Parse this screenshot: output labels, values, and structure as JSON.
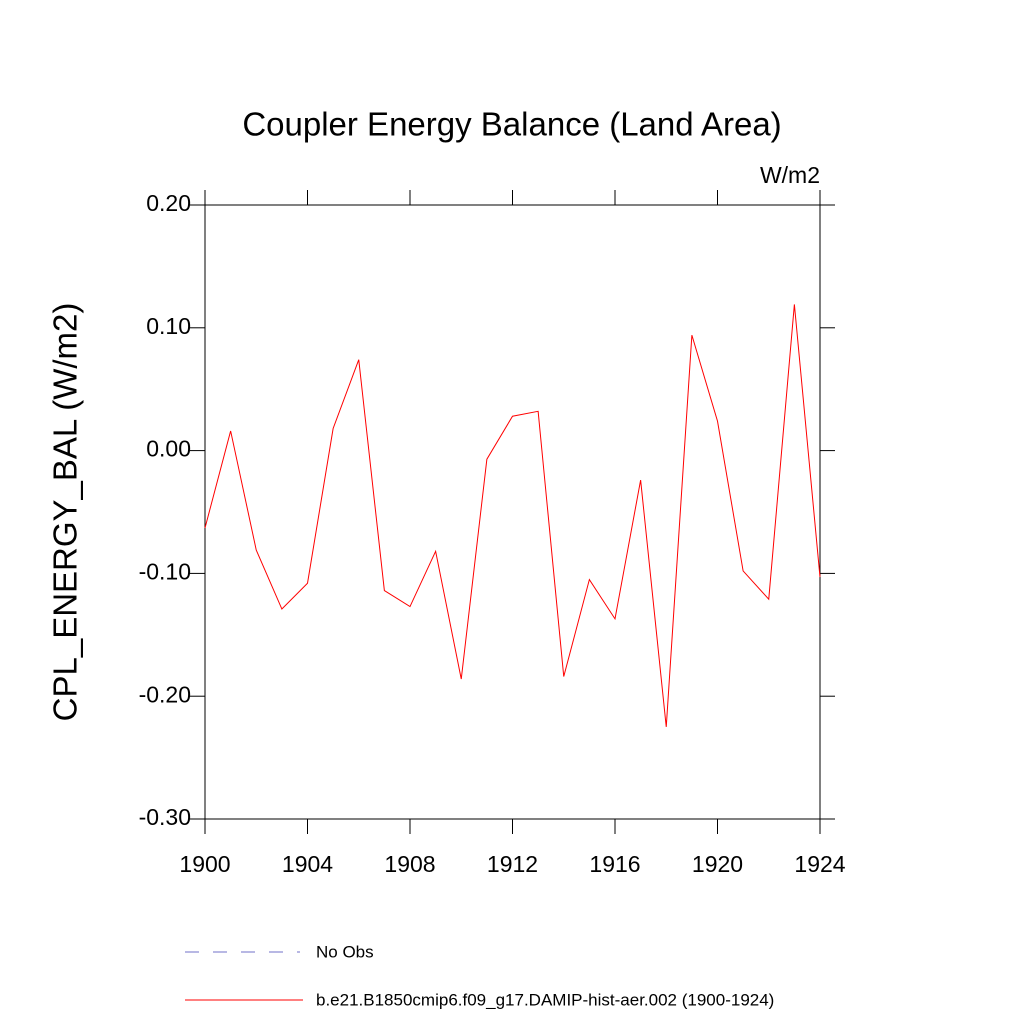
{
  "chart_data": {
    "type": "line",
    "title": "Coupler Energy Balance (Land Area)",
    "units": "W/m2",
    "y_label": "CPL_ENERGY_BAL  (W/m2)",
    "x": [
      1900,
      1901,
      1902,
      1903,
      1904,
      1905,
      1906,
      1907,
      1908,
      1909,
      1910,
      1911,
      1912,
      1913,
      1914,
      1915,
      1916,
      1917,
      1918,
      1919,
      1920,
      1921,
      1922,
      1923,
      1924
    ],
    "series": [
      {
        "name": "b.e21.B1850cmip6.f09_g17.DAMIP-hist-aer.002 (1900-1924)",
        "color": "#ff0000",
        "values": [
          -0.063,
          0.016,
          -0.081,
          -0.129,
          -0.108,
          0.018,
          0.074,
          -0.114,
          -0.127,
          -0.082,
          -0.186,
          -0.007,
          0.028,
          0.032,
          -0.184,
          -0.105,
          -0.137,
          -0.024,
          -0.225,
          0.094,
          0.024,
          -0.098,
          -0.121,
          0.119,
          -0.103
        ]
      }
    ],
    "reference": {
      "name": "No Obs",
      "color": "#7070c8"
    },
    "xlim": [
      1900,
      1924
    ],
    "xticks": [
      1900,
      1904,
      1908,
      1912,
      1916,
      1920,
      1924
    ],
    "ylim": [
      -0.3,
      0.2
    ],
    "yticks": [
      {
        "value": -0.3,
        "label": "-0.30"
      },
      {
        "value": -0.2,
        "label": "-0.20"
      },
      {
        "value": -0.1,
        "label": "-0.10"
      },
      {
        "value": 0,
        "label": "0.00"
      },
      {
        "value": 0.1,
        "label": "0.10"
      },
      {
        "value": 0.2,
        "label": "0.20"
      }
    ]
  }
}
